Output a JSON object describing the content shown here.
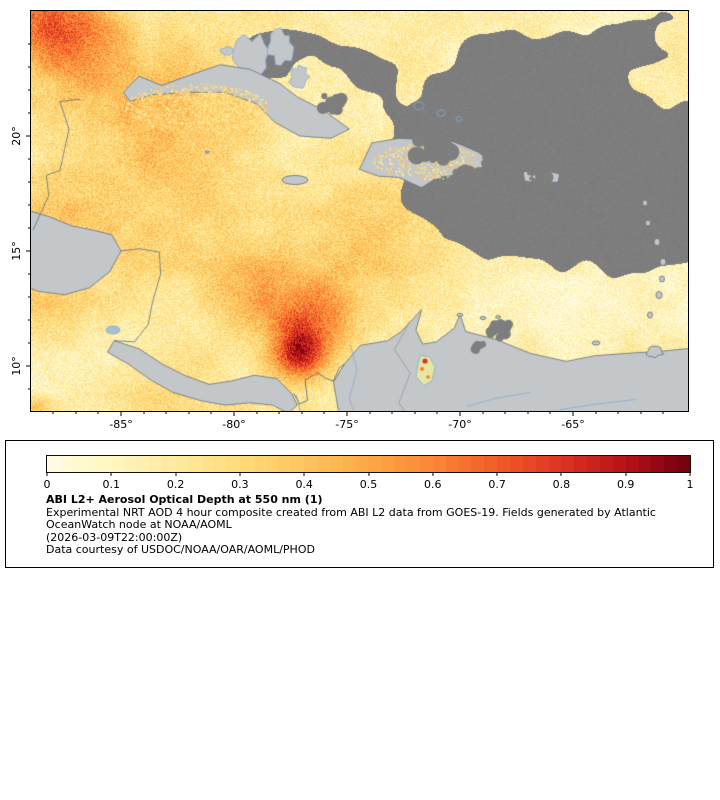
{
  "map": {
    "x_axis": {
      "ticks": [
        {
          "label": "-85°",
          "value": -85
        },
        {
          "label": "-80°",
          "value": -80
        },
        {
          "label": "-75°",
          "value": -75
        },
        {
          "label": "-70°",
          "value": -70
        },
        {
          "label": "-65°",
          "value": -65
        }
      ]
    },
    "y_axis": {
      "ticks": [
        {
          "label": "20°",
          "value": 20
        },
        {
          "label": "15°",
          "value": 15
        },
        {
          "label": "10°",
          "value": 10
        }
      ]
    },
    "colors": {
      "land": "#c4c7ca",
      "missing_data": "#7e7e7e",
      "coastline": "#5f6f7d",
      "water_lines": "#87abd2",
      "frame": "#000000",
      "lake_data": "#e9e6a4"
    }
  },
  "legend": {
    "colorbar": {
      "min": 0,
      "max": 1,
      "tick_labels": [
        "0",
        "0.1",
        "0.2",
        "0.3",
        "0.4",
        "0.5",
        "0.6",
        "0.7",
        "0.8",
        "0.9",
        "1"
      ],
      "stops": [
        {
          "at": 0.0,
          "color": "#fffce4"
        },
        {
          "at": 0.1,
          "color": "#fff6c0"
        },
        {
          "at": 0.2,
          "color": "#feea9e"
        },
        {
          "at": 0.3,
          "color": "#fedc7a"
        },
        {
          "at": 0.4,
          "color": "#fdc55e"
        },
        {
          "at": 0.5,
          "color": "#fda847"
        },
        {
          "at": 0.6,
          "color": "#fb8736"
        },
        {
          "at": 0.7,
          "color": "#f25b29"
        },
        {
          "at": 0.8,
          "color": "#dd3322"
        },
        {
          "at": 0.9,
          "color": "#b51218"
        },
        {
          "at": 1.0,
          "color": "#6e000e"
        }
      ]
    },
    "title": "ABI L2+ Aerosol Optical Depth at 550 nm (1)",
    "description_line1": "Experimental NRT AOD 4 hour composite created from ABI L2 data from GOES-19. Fields generated by Atlantic",
    "description_line2": "OceanWatch node at NOAA/AOML",
    "timestamp": "(2026-03-09T22:00:00Z)",
    "credit": "Data courtesy of USDOC/NOAA/OAR/AOML/PHOD"
  }
}
